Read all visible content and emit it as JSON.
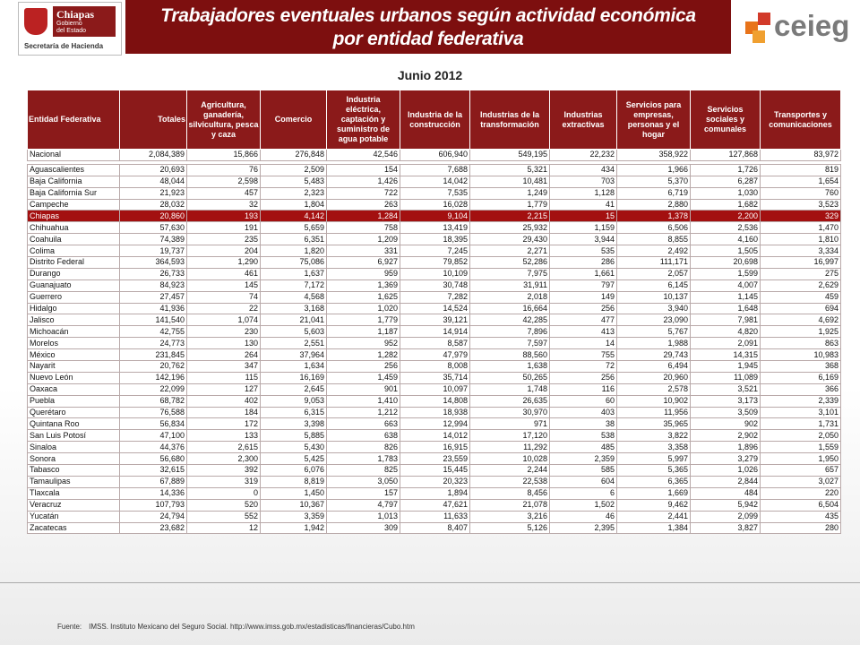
{
  "header": {
    "logo_left": {
      "name": "Chiapas",
      "subtitle": "Gobierno del Estado",
      "department": "Secretaría de Hacienda"
    },
    "title_lines": [
      "Trabajadores eventuales urbanos según actividad económica",
      "por entidad federativa"
    ],
    "logo_right": "ceieg"
  },
  "date": "Junio 2012",
  "table": {
    "columns": [
      "Entidad Federativa",
      "Totales",
      "Agricultura, ganadería, silvicultura, pesca y caza",
      "Comercio",
      "Industria eléctrica, captación y suministro de agua potable",
      "Industria de la construcción",
      "Industrias de la transformación",
      "Industrias extractivas",
      "Servicios para empresas, personas y el hogar",
      "Servicios sociales y comunales",
      "Transportes y comunicaciones"
    ],
    "rows": [
      [
        "Nacional",
        "2,084,389",
        "15,866",
        "276,848",
        "42,546",
        "606,940",
        "549,195",
        "22,232",
        "358,922",
        "127,868",
        "83,972"
      ],
      [
        "Aguascalientes",
        "20,693",
        "76",
        "2,509",
        "154",
        "7,688",
        "5,321",
        "434",
        "1,966",
        "1,726",
        "819"
      ],
      [
        "Baja California",
        "48,044",
        "2,598",
        "5,483",
        "1,426",
        "14,042",
        "10,481",
        "703",
        "5,370",
        "6,287",
        "1,654"
      ],
      [
        "Baja California Sur",
        "21,923",
        "457",
        "2,323",
        "722",
        "7,535",
        "1,249",
        "1,128",
        "6,719",
        "1,030",
        "760"
      ],
      [
        "Campeche",
        "28,032",
        "32",
        "1,804",
        "263",
        "16,028",
        "1,779",
        "41",
        "2,880",
        "1,682",
        "3,523"
      ],
      [
        "Chiapas",
        "20,860",
        "193",
        "4,142",
        "1,284",
        "9,104",
        "2,215",
        "15",
        "1,378",
        "2,200",
        "329"
      ],
      [
        "Chihuahua",
        "57,630",
        "191",
        "5,659",
        "758",
        "13,419",
        "25,932",
        "1,159",
        "6,506",
        "2,536",
        "1,470"
      ],
      [
        "Coahuila",
        "74,389",
        "235",
        "6,351",
        "1,209",
        "18,395",
        "29,430",
        "3,944",
        "8,855",
        "4,160",
        "1,810"
      ],
      [
        "Colima",
        "19,737",
        "204",
        "1,820",
        "331",
        "7,245",
        "2,271",
        "535",
        "2,492",
        "1,505",
        "3,334"
      ],
      [
        "Distrito Federal",
        "364,593",
        "1,290",
        "75,086",
        "6,927",
        "79,852",
        "52,286",
        "286",
        "111,171",
        "20,698",
        "16,997"
      ],
      [
        "Durango",
        "26,733",
        "461",
        "1,637",
        "959",
        "10,109",
        "7,975",
        "1,661",
        "2,057",
        "1,599",
        "275"
      ],
      [
        "Guanajuato",
        "84,923",
        "145",
        "7,172",
        "1,369",
        "30,748",
        "31,911",
        "797",
        "6,145",
        "4,007",
        "2,629"
      ],
      [
        "Guerrero",
        "27,457",
        "74",
        "4,568",
        "1,625",
        "7,282",
        "2,018",
        "149",
        "10,137",
        "1,145",
        "459"
      ],
      [
        "Hidalgo",
        "41,936",
        "22",
        "3,168",
        "1,020",
        "14,524",
        "16,664",
        "256",
        "3,940",
        "1,648",
        "694"
      ],
      [
        "Jalisco",
        "141,540",
        "1,074",
        "21,041",
        "1,779",
        "39,121",
        "42,285",
        "477",
        "23,090",
        "7,981",
        "4,692"
      ],
      [
        "Michoacán",
        "42,755",
        "230",
        "5,603",
        "1,187",
        "14,914",
        "7,896",
        "413",
        "5,767",
        "4,820",
        "1,925"
      ],
      [
        "Morelos",
        "24,773",
        "130",
        "2,551",
        "952",
        "8,587",
        "7,597",
        "14",
        "1,988",
        "2,091",
        "863"
      ],
      [
        "México",
        "231,845",
        "264",
        "37,964",
        "1,282",
        "47,979",
        "88,560",
        "755",
        "29,743",
        "14,315",
        "10,983"
      ],
      [
        "Nayarit",
        "20,762",
        "347",
        "1,634",
        "256",
        "8,008",
        "1,638",
        "72",
        "6,494",
        "1,945",
        "368"
      ],
      [
        "Nuevo León",
        "142,196",
        "115",
        "16,169",
        "1,459",
        "35,714",
        "50,265",
        "256",
        "20,960",
        "11,089",
        "6,169"
      ],
      [
        "Oaxaca",
        "22,099",
        "127",
        "2,645",
        "901",
        "10,097",
        "1,748",
        "116",
        "2,578",
        "3,521",
        "366"
      ],
      [
        "Puebla",
        "68,782",
        "402",
        "9,053",
        "1,410",
        "14,808",
        "26,635",
        "60",
        "10,902",
        "3,173",
        "2,339"
      ],
      [
        "Querétaro",
        "76,588",
        "184",
        "6,315",
        "1,212",
        "18,938",
        "30,970",
        "403",
        "11,956",
        "3,509",
        "3,101"
      ],
      [
        "Quintana Roo",
        "56,834",
        "172",
        "3,398",
        "663",
        "12,994",
        "971",
        "38",
        "35,965",
        "902",
        "1,731"
      ],
      [
        "San Luis Potosí",
        "47,100",
        "133",
        "5,885",
        "638",
        "14,012",
        "17,120",
        "538",
        "3,822",
        "2,902",
        "2,050"
      ],
      [
        "Sinaloa",
        "44,376",
        "2,615",
        "5,430",
        "826",
        "16,915",
        "11,292",
        "485",
        "3,358",
        "1,896",
        "1,559"
      ],
      [
        "Sonora",
        "56,680",
        "2,300",
        "5,425",
        "1,783",
        "23,559",
        "10,028",
        "2,359",
        "5,997",
        "3,279",
        "1,950"
      ],
      [
        "Tabasco",
        "32,615",
        "392",
        "6,076",
        "825",
        "15,445",
        "2,244",
        "585",
        "5,365",
        "1,026",
        "657"
      ],
      [
        "Tamaulipas",
        "67,889",
        "319",
        "8,819",
        "3,050",
        "20,323",
        "22,538",
        "604",
        "6,365",
        "2,844",
        "3,027"
      ],
      [
        "Tlaxcala",
        "14,336",
        "0",
        "1,450",
        "157",
        "1,894",
        "8,456",
        "6",
        "1,669",
        "484",
        "220"
      ],
      [
        "Veracruz",
        "107,793",
        "520",
        "10,367",
        "4,797",
        "47,621",
        "21,078",
        "1,502",
        "9,462",
        "5,942",
        "6,504"
      ],
      [
        "Yucatán",
        "24,794",
        "552",
        "3,359",
        "1,013",
        "11,633",
        "3,216",
        "46",
        "2,441",
        "2,099",
        "435"
      ],
      [
        "Zacatecas",
        "23,682",
        "12",
        "1,942",
        "309",
        "8,407",
        "5,126",
        "2,395",
        "1,384",
        "3,827",
        "280"
      ]
    ],
    "highlight_row": "Chiapas"
  },
  "footer": {
    "label": "Fuente:",
    "text": "IMSS. Instituto Mexicano del Seguro Social. http://www.imss.gob.mx/estadisticas/financieras/Cubo.htm"
  }
}
